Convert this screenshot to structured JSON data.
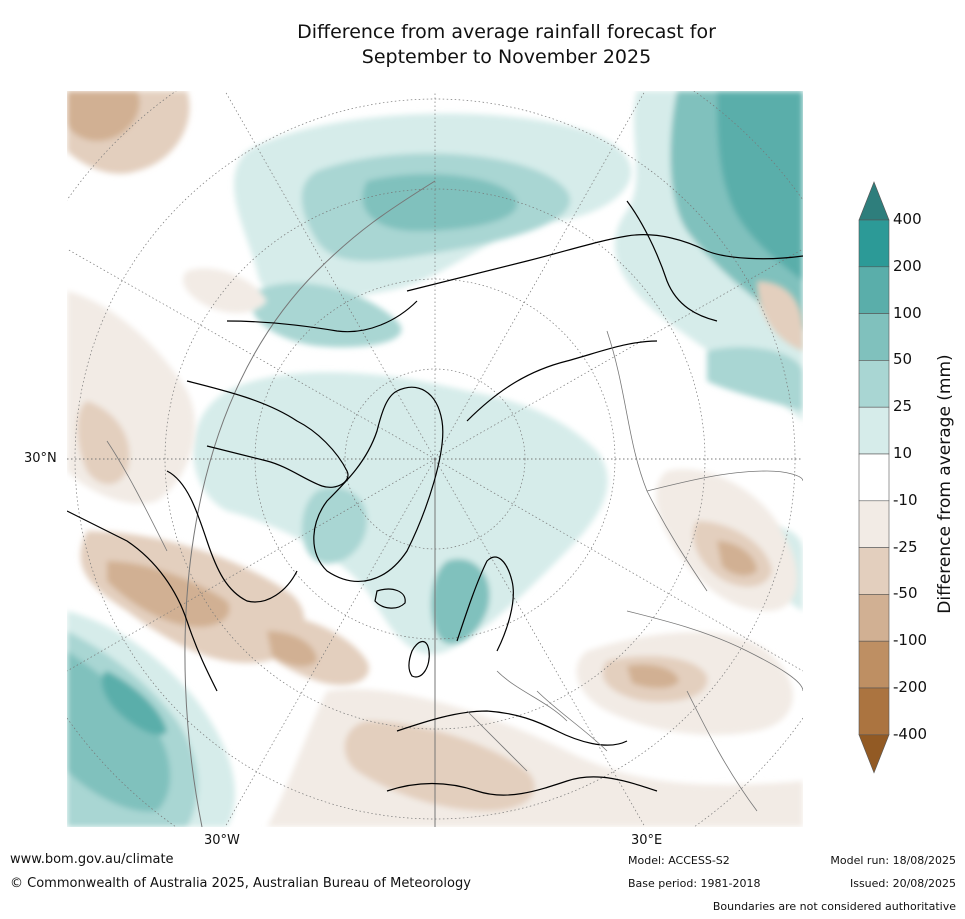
{
  "title_line1": "Difference from average rainfall forecast for",
  "title_line2": "September to November 2025",
  "lat_label": "30°N",
  "lon_labels": {
    "west": "30°W",
    "east": "30°E"
  },
  "colorbar": {
    "title": "Difference from average (mm)",
    "ticks": [
      "400",
      "200",
      "100",
      "50",
      "25",
      "10",
      "-10",
      "-25",
      "-50",
      "-100",
      "-200",
      "-400"
    ],
    "colors": [
      "#2e7e7c",
      "#2c9a97",
      "#5aaeaa",
      "#80c1bd",
      "#a9d6d3",
      "#d6ecea",
      "#ffffff",
      "#f2ebe5",
      "#e3cfbe",
      "#d1b093",
      "#be8f63",
      "#ab7440",
      "#925a24"
    ]
  },
  "footer": {
    "website": "www.bom.gov.au/climate",
    "copyright": "© Commonwealth of Australia 2025, Australian Bureau of Meteorology",
    "model": "Model: ACCESS-S2",
    "base_period": "Base period: 1981-2018",
    "model_run": "Model run: 18/08/2025",
    "issued": "Issued: 20/08/2025",
    "disclaimer": "Boundaries are not considered authoritative"
  }
}
